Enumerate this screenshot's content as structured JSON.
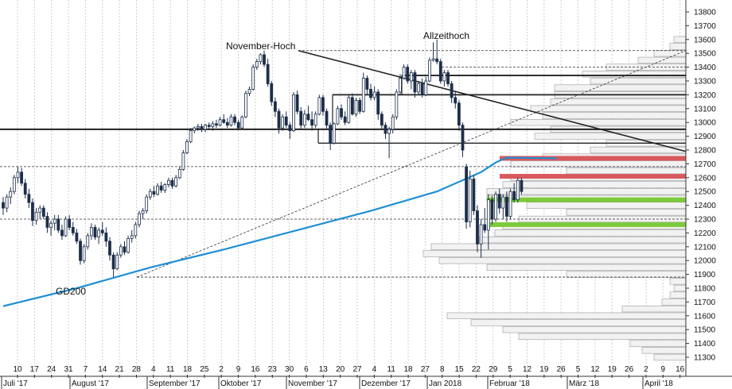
{
  "chart_data": {
    "type": "candlestick",
    "title": "",
    "xlabel": "",
    "ylabel": "",
    "ylim": [
      11250,
      13880
    ],
    "y_ticks": [
      11300,
      11400,
      11500,
      11600,
      11700,
      11800,
      11900,
      12000,
      12100,
      12200,
      12300,
      12400,
      12500,
      12600,
      12700,
      12800,
      12900,
      13000,
      13100,
      13200,
      13300,
      13400,
      13500,
      13600,
      13700,
      13800
    ],
    "x_day_labels": [
      "10",
      "17",
      "24",
      "31",
      "7",
      "14",
      "21",
      "28",
      "4",
      "11",
      "18",
      "25",
      "2",
      "9",
      "16",
      "23",
      "30",
      "6",
      "13",
      "20",
      "27",
      "4",
      "11",
      "18",
      "27",
      "8",
      "15",
      "22",
      "29",
      "5",
      "12",
      "19",
      "26",
      "5",
      "12",
      "19",
      "26",
      "2",
      "9",
      "16"
    ],
    "x_month_labels": [
      "Juli '17",
      "August '17",
      "September '17",
      "Oktober '17",
      "November '17",
      "Dezember '17",
      "Jan 2018",
      "Februar '18",
      "März '18",
      "April '18"
    ],
    "annotations": [
      "November-Hoch",
      "Allzeithoch",
      "GD200"
    ],
    "horizontal_lines": [
      12950,
      13340,
      13200,
      12850
    ],
    "dashed_levels": [
      12680,
      12300,
      11880,
      13520,
      13400
    ],
    "resistance_zones": [
      12740,
      12610
    ],
    "support_zones": [
      12440,
      12260
    ],
    "candles": [
      {
        "o": 12420,
        "h": 12460,
        "l": 12330,
        "c": 12380
      },
      {
        "o": 12380,
        "h": 12480,
        "l": 12350,
        "c": 12460
      },
      {
        "o": 12460,
        "h": 12530,
        "l": 12410,
        "c": 12500
      },
      {
        "o": 12500,
        "h": 12620,
        "l": 12480,
        "c": 12600
      },
      {
        "o": 12600,
        "h": 12680,
        "l": 12560,
        "c": 12640
      },
      {
        "o": 12640,
        "h": 12670,
        "l": 12540,
        "c": 12560
      },
      {
        "o": 12560,
        "h": 12590,
        "l": 12450,
        "c": 12480
      },
      {
        "o": 12480,
        "h": 12520,
        "l": 12380,
        "c": 12420
      },
      {
        "o": 12420,
        "h": 12450,
        "l": 12250,
        "c": 12290
      },
      {
        "o": 12290,
        "h": 12380,
        "l": 12260,
        "c": 12350
      },
      {
        "o": 12350,
        "h": 12400,
        "l": 12300,
        "c": 12380
      },
      {
        "o": 12380,
        "h": 12400,
        "l": 12300,
        "c": 12320
      },
      {
        "o": 12320,
        "h": 12350,
        "l": 12200,
        "c": 12240
      },
      {
        "o": 12240,
        "h": 12290,
        "l": 12180,
        "c": 12270
      },
      {
        "o": 12270,
        "h": 12330,
        "l": 12220,
        "c": 12300
      },
      {
        "o": 12300,
        "h": 12330,
        "l": 12200,
        "c": 12220
      },
      {
        "o": 12220,
        "h": 12260,
        "l": 12150,
        "c": 12180
      },
      {
        "o": 12180,
        "h": 12320,
        "l": 12170,
        "c": 12300
      },
      {
        "o": 12300,
        "h": 12330,
        "l": 12220,
        "c": 12240
      },
      {
        "o": 12240,
        "h": 12280,
        "l": 12180,
        "c": 12200
      },
      {
        "o": 12200,
        "h": 12230,
        "l": 12120,
        "c": 12140
      },
      {
        "o": 12140,
        "h": 12160,
        "l": 11970,
        "c": 12000
      },
      {
        "o": 12000,
        "h": 12120,
        "l": 11980,
        "c": 12100
      },
      {
        "o": 12100,
        "h": 12200,
        "l": 12080,
        "c": 12180
      },
      {
        "o": 12180,
        "h": 12270,
        "l": 12150,
        "c": 12240
      },
      {
        "o": 12240,
        "h": 12260,
        "l": 12150,
        "c": 12170
      },
      {
        "o": 12170,
        "h": 12240,
        "l": 12120,
        "c": 12220
      },
      {
        "o": 12220,
        "h": 12280,
        "l": 12180,
        "c": 12200
      },
      {
        "o": 12200,
        "h": 12240,
        "l": 12100,
        "c": 12140
      },
      {
        "o": 12140,
        "h": 12170,
        "l": 12000,
        "c": 12040
      },
      {
        "o": 12040,
        "h": 12060,
        "l": 11880,
        "c": 11940
      },
      {
        "o": 11940,
        "h": 12060,
        "l": 11930,
        "c": 12040
      },
      {
        "o": 12040,
        "h": 12120,
        "l": 12020,
        "c": 12100
      },
      {
        "o": 12100,
        "h": 12140,
        "l": 12040,
        "c": 12060
      },
      {
        "o": 12060,
        "h": 12180,
        "l": 12050,
        "c": 12160
      },
      {
        "o": 12160,
        "h": 12220,
        "l": 12130,
        "c": 12180
      },
      {
        "o": 12180,
        "h": 12280,
        "l": 12160,
        "c": 12260
      },
      {
        "o": 12260,
        "h": 12360,
        "l": 12240,
        "c": 12340
      },
      {
        "o": 12340,
        "h": 12380,
        "l": 12300,
        "c": 12360
      },
      {
        "o": 12360,
        "h": 12480,
        "l": 12340,
        "c": 12460
      },
      {
        "o": 12460,
        "h": 12520,
        "l": 12440,
        "c": 12500
      },
      {
        "o": 12500,
        "h": 12540,
        "l": 12460,
        "c": 12480
      },
      {
        "o": 12480,
        "h": 12560,
        "l": 12470,
        "c": 12540
      },
      {
        "o": 12540,
        "h": 12570,
        "l": 12490,
        "c": 12510
      },
      {
        "o": 12510,
        "h": 12560,
        "l": 12490,
        "c": 12550
      },
      {
        "o": 12550,
        "h": 12600,
        "l": 12530,
        "c": 12580
      },
      {
        "o": 12580,
        "h": 12600,
        "l": 12520,
        "c": 12540
      },
      {
        "o": 12540,
        "h": 12620,
        "l": 12530,
        "c": 12600
      },
      {
        "o": 12600,
        "h": 12680,
        "l": 12590,
        "c": 12660
      },
      {
        "o": 12660,
        "h": 12800,
        "l": 12650,
        "c": 12780
      },
      {
        "o": 12780,
        "h": 12880,
        "l": 12770,
        "c": 12860
      },
      {
        "o": 12860,
        "h": 12960,
        "l": 12850,
        "c": 12940
      },
      {
        "o": 12940,
        "h": 12970,
        "l": 12920,
        "c": 12960
      },
      {
        "o": 12960,
        "h": 12990,
        "l": 12940,
        "c": 12970
      },
      {
        "o": 12970,
        "h": 12990,
        "l": 12930,
        "c": 12950
      },
      {
        "o": 12950,
        "h": 12990,
        "l": 12930,
        "c": 12980
      },
      {
        "o": 12980,
        "h": 13000,
        "l": 12950,
        "c": 12970
      },
      {
        "o": 12970,
        "h": 13010,
        "l": 12940,
        "c": 12990
      },
      {
        "o": 12990,
        "h": 13020,
        "l": 12960,
        "c": 12980
      },
      {
        "o": 12980,
        "h": 13040,
        "l": 12970,
        "c": 13020
      },
      {
        "o": 13020,
        "h": 13060,
        "l": 12990,
        "c": 13000
      },
      {
        "o": 13000,
        "h": 13030,
        "l": 12960,
        "c": 12980
      },
      {
        "o": 12980,
        "h": 13060,
        "l": 12970,
        "c": 13040
      },
      {
        "o": 13040,
        "h": 13060,
        "l": 12980,
        "c": 13000
      },
      {
        "o": 13000,
        "h": 13020,
        "l": 12950,
        "c": 12960
      },
      {
        "o": 12960,
        "h": 13050,
        "l": 12950,
        "c": 13040
      },
      {
        "o": 13040,
        "h": 13230,
        "l": 13030,
        "c": 13210
      },
      {
        "o": 13210,
        "h": 13260,
        "l": 13190,
        "c": 13240
      },
      {
        "o": 13240,
        "h": 13420,
        "l": 13230,
        "c": 13400
      },
      {
        "o": 13400,
        "h": 13460,
        "l": 13380,
        "c": 13440
      },
      {
        "o": 13440,
        "h": 13500,
        "l": 13420,
        "c": 13490
      },
      {
        "o": 13490,
        "h": 13520,
        "l": 13400,
        "c": 13420
      },
      {
        "o": 13420,
        "h": 13460,
        "l": 13260,
        "c": 13280
      },
      {
        "o": 13280,
        "h": 13300,
        "l": 13120,
        "c": 13150
      },
      {
        "o": 13150,
        "h": 13180,
        "l": 13040,
        "c": 13080
      },
      {
        "o": 13080,
        "h": 13100,
        "l": 12920,
        "c": 12960
      },
      {
        "o": 12960,
        "h": 13060,
        "l": 12940,
        "c": 13040
      },
      {
        "o": 13040,
        "h": 13080,
        "l": 12960,
        "c": 12980
      },
      {
        "o": 12980,
        "h": 13000,
        "l": 12880,
        "c": 12940
      },
      {
        "o": 12940,
        "h": 13220,
        "l": 12930,
        "c": 13200
      },
      {
        "o": 13200,
        "h": 13230,
        "l": 13060,
        "c": 13080
      },
      {
        "o": 13080,
        "h": 13110,
        "l": 12950,
        "c": 12980
      },
      {
        "o": 12980,
        "h": 13090,
        "l": 12960,
        "c": 13060
      },
      {
        "o": 13060,
        "h": 13120,
        "l": 13010,
        "c": 13020
      },
      {
        "o": 13020,
        "h": 13080,
        "l": 12940,
        "c": 12980
      },
      {
        "o": 12980,
        "h": 13080,
        "l": 12960,
        "c": 13060
      },
      {
        "o": 13060,
        "h": 13200,
        "l": 13050,
        "c": 13180
      },
      {
        "o": 13180,
        "h": 13200,
        "l": 13050,
        "c": 13080
      },
      {
        "o": 13080,
        "h": 13100,
        "l": 12950,
        "c": 12980
      },
      {
        "o": 12980,
        "h": 13000,
        "l": 12800,
        "c": 12850
      },
      {
        "o": 12850,
        "h": 13000,
        "l": 12840,
        "c": 12990
      },
      {
        "o": 12990,
        "h": 13120,
        "l": 12980,
        "c": 13100
      },
      {
        "o": 13100,
        "h": 13130,
        "l": 13020,
        "c": 13040
      },
      {
        "o": 13040,
        "h": 13080,
        "l": 12980,
        "c": 13000
      },
      {
        "o": 13000,
        "h": 13200,
        "l": 12990,
        "c": 13180
      },
      {
        "o": 13180,
        "h": 13210,
        "l": 13050,
        "c": 13060
      },
      {
        "o": 13060,
        "h": 13180,
        "l": 13040,
        "c": 13160
      },
      {
        "o": 13160,
        "h": 13180,
        "l": 13060,
        "c": 13080
      },
      {
        "o": 13080,
        "h": 13360,
        "l": 13070,
        "c": 13320
      },
      {
        "o": 13320,
        "h": 13340,
        "l": 13200,
        "c": 13240
      },
      {
        "o": 13240,
        "h": 13280,
        "l": 13160,
        "c": 13180
      },
      {
        "o": 13180,
        "h": 13260,
        "l": 13160,
        "c": 13220
      },
      {
        "o": 13220,
        "h": 13240,
        "l": 13020,
        "c": 13060
      },
      {
        "o": 13060,
        "h": 13080,
        "l": 12950,
        "c": 12980
      },
      {
        "o": 12980,
        "h": 13000,
        "l": 12880,
        "c": 12920
      },
      {
        "o": 12920,
        "h": 12970,
        "l": 12740,
        "c": 12950
      },
      {
        "o": 12950,
        "h": 13060,
        "l": 12920,
        "c": 13040
      },
      {
        "o": 13040,
        "h": 13240,
        "l": 13020,
        "c": 13220
      },
      {
        "o": 13220,
        "h": 13350,
        "l": 13200,
        "c": 13320
      },
      {
        "o": 13320,
        "h": 13420,
        "l": 13310,
        "c": 13400
      },
      {
        "o": 13400,
        "h": 13420,
        "l": 13280,
        "c": 13300
      },
      {
        "o": 13300,
        "h": 13380,
        "l": 13240,
        "c": 13360
      },
      {
        "o": 13360,
        "h": 13380,
        "l": 13180,
        "c": 13220
      },
      {
        "o": 13220,
        "h": 13300,
        "l": 13200,
        "c": 13280
      },
      {
        "o": 13280,
        "h": 13320,
        "l": 13180,
        "c": 13200
      },
      {
        "o": 13200,
        "h": 13330,
        "l": 13190,
        "c": 13300
      },
      {
        "o": 13300,
        "h": 13470,
        "l": 13290,
        "c": 13450
      },
      {
        "o": 13450,
        "h": 13580,
        "l": 13440,
        "c": 13460
      },
      {
        "o": 13460,
        "h": 13600,
        "l": 13420,
        "c": 13440
      },
      {
        "o": 13440,
        "h": 13460,
        "l": 13280,
        "c": 13300
      },
      {
        "o": 13300,
        "h": 13380,
        "l": 13260,
        "c": 13360
      },
      {
        "o": 13360,
        "h": 13380,
        "l": 13260,
        "c": 13280
      },
      {
        "o": 13280,
        "h": 13300,
        "l": 13140,
        "c": 13180
      },
      {
        "o": 13180,
        "h": 13220,
        "l": 13100,
        "c": 13140
      },
      {
        "o": 13140,
        "h": 13160,
        "l": 12940,
        "c": 12980
      },
      {
        "o": 12980,
        "h": 13000,
        "l": 12750,
        "c": 12800
      },
      {
        "o": 12680,
        "h": 12700,
        "l": 12230,
        "c": 12280
      },
      {
        "o": 12280,
        "h": 12650,
        "l": 12240,
        "c": 12590
      },
      {
        "o": 12590,
        "h": 12620,
        "l": 12330,
        "c": 12360
      },
      {
        "o": 12360,
        "h": 12400,
        "l": 12060,
        "c": 12120
      },
      {
        "o": 12120,
        "h": 12300,
        "l": 12020,
        "c": 12260
      },
      {
        "o": 12260,
        "h": 12380,
        "l": 12200,
        "c": 12220
      },
      {
        "o": 12220,
        "h": 12480,
        "l": 12080,
        "c": 12440
      },
      {
        "o": 12440,
        "h": 12470,
        "l": 12260,
        "c": 12300
      },
      {
        "o": 12300,
        "h": 12500,
        "l": 12280,
        "c": 12480
      },
      {
        "o": 12480,
        "h": 12520,
        "l": 12340,
        "c": 12380
      },
      {
        "o": 12380,
        "h": 12480,
        "l": 12300,
        "c": 12460
      },
      {
        "o": 12460,
        "h": 12500,
        "l": 12280,
        "c": 12320
      },
      {
        "o": 12320,
        "h": 12520,
        "l": 12300,
        "c": 12500
      },
      {
        "o": 12500,
        "h": 12560,
        "l": 12420,
        "c": 12440
      },
      {
        "o": 12440,
        "h": 12600,
        "l": 12420,
        "c": 12580
      },
      {
        "o": 12580,
        "h": 12600,
        "l": 12480,
        "c": 12500
      }
    ],
    "sma200": [
      {
        "i": 0,
        "v": 11670
      },
      {
        "i": 20,
        "v": 11800
      },
      {
        "i": 40,
        "v": 11950
      },
      {
        "i": 60,
        "v": 12080
      },
      {
        "i": 80,
        "v": 12220
      },
      {
        "i": 100,
        "v": 12360
      },
      {
        "i": 118,
        "v": 12500
      },
      {
        "i": 130,
        "v": 12640
      },
      {
        "i": 134,
        "v": 12710
      },
      {
        "i": 137,
        "v": 12745
      }
    ],
    "volume_profile": [
      {
        "p": 11300,
        "w": 40
      },
      {
        "p": 11350,
        "w": 55
      },
      {
        "p": 11400,
        "w": 70
      },
      {
        "p": 11450,
        "w": 210
      },
      {
        "p": 11500,
        "w": 230
      },
      {
        "p": 11550,
        "w": 270
      },
      {
        "p": 11600,
        "w": 300
      },
      {
        "p": 11650,
        "w": 80
      },
      {
        "p": 11700,
        "w": 30
      },
      {
        "p": 11750,
        "w": 20
      },
      {
        "p": 11800,
        "w": 15
      },
      {
        "p": 11850,
        "w": 20
      },
      {
        "p": 11900,
        "w": 150
      },
      {
        "p": 11950,
        "w": 250
      },
      {
        "p": 12000,
        "w": 310
      },
      {
        "p": 12050,
        "w": 330
      },
      {
        "p": 12100,
        "w": 320
      },
      {
        "p": 12150,
        "w": 260
      },
      {
        "p": 12200,
        "w": 240
      },
      {
        "p": 12250,
        "w": 230
      },
      {
        "p": 12300,
        "w": 210
      },
      {
        "p": 12350,
        "w": 150
      },
      {
        "p": 12400,
        "w": 200
      },
      {
        "p": 12450,
        "w": 250
      },
      {
        "p": 12500,
        "w": 250
      },
      {
        "p": 12550,
        "w": 230
      },
      {
        "p": 12600,
        "w": 220
      },
      {
        "p": 12650,
        "w": 150
      },
      {
        "p": 12700,
        "w": 220
      },
      {
        "p": 12750,
        "w": 180
      },
      {
        "p": 12800,
        "w": 120
      },
      {
        "p": 12850,
        "w": 100
      },
      {
        "p": 12900,
        "w": 190
      },
      {
        "p": 12950,
        "w": 170
      },
      {
        "p": 13000,
        "w": 220
      },
      {
        "p": 13050,
        "w": 180
      },
      {
        "p": 13100,
        "w": 195
      },
      {
        "p": 13150,
        "w": 170
      },
      {
        "p": 13200,
        "w": 165
      },
      {
        "p": 13250,
        "w": 165
      },
      {
        "p": 13300,
        "w": 120
      },
      {
        "p": 13350,
        "w": 130
      },
      {
        "p": 13400,
        "w": 100
      },
      {
        "p": 13450,
        "w": 60
      },
      {
        "p": 13500,
        "w": 40
      },
      {
        "p": 13550,
        "w": 20
      },
      {
        "p": 13600,
        "w": 15
      }
    ]
  }
}
